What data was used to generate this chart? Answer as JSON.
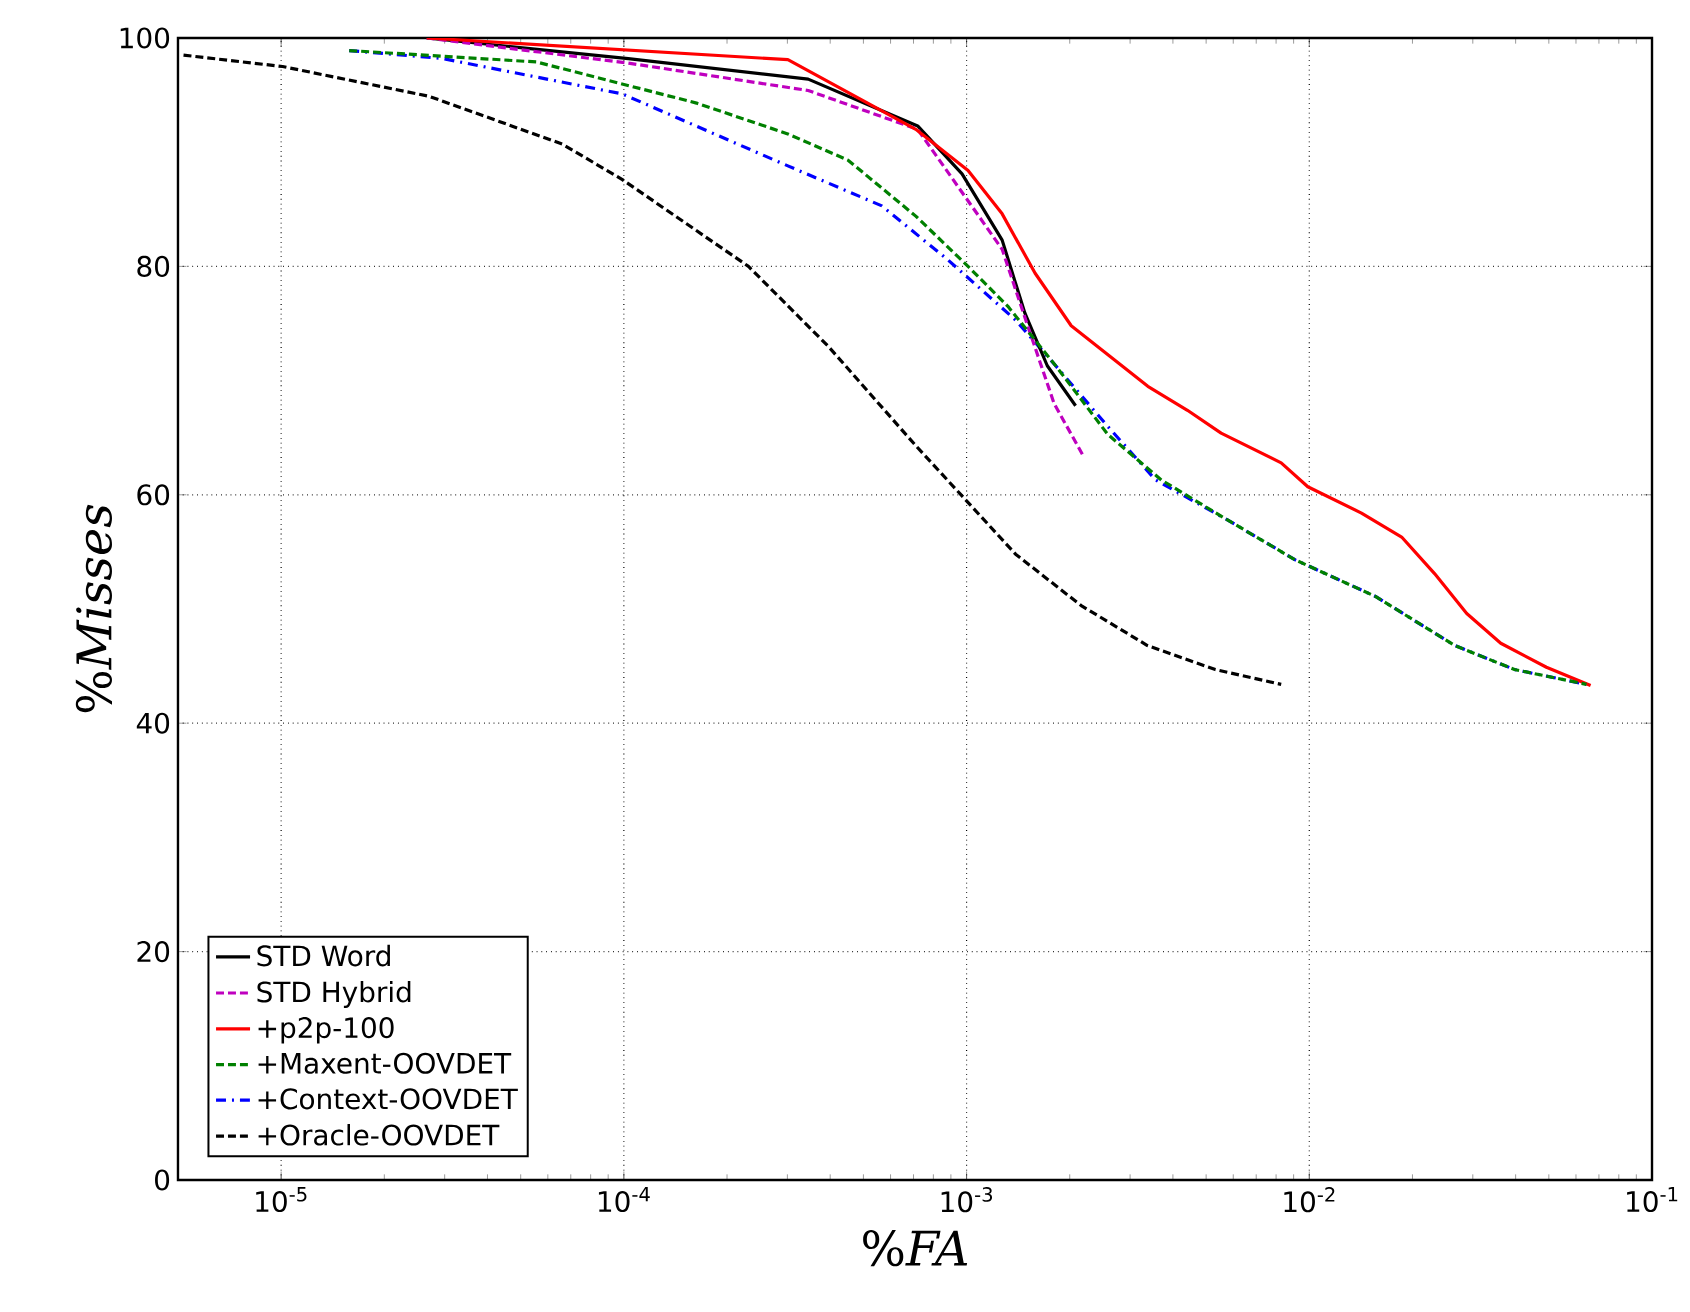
{
  "chart_data": {
    "type": "line",
    "xlabel": "%*FA*",
    "ylabel": "%*Misses*",
    "log": "x",
    "xlim": [
      5e-06,
      0.1
    ],
    "ylim": [
      0,
      100
    ],
    "xticks": [
      {
        "value": 1e-05,
        "label": "10$^{-5}$"
      },
      {
        "value": 0.0001,
        "label": "10$^{-4}$"
      },
      {
        "value": 0.001,
        "label": "10$^{-3}$"
      },
      {
        "value": 0.01,
        "label": "10$^{-2}$"
      },
      {
        "value": 0.1,
        "label": "10$^{-1}$"
      }
    ],
    "yticks": [
      0,
      20,
      40,
      60,
      80,
      100
    ],
    "grid": true,
    "legend": "bottom left",
    "marker": "none",
    "series": [
      {
        "name": "STD Word",
        "color": "#000000",
        "line_style": "solid",
        "x": [
          2.66e-05,
          0.000103,
          0.000345,
          0.00072,
          0.00097,
          0.00127,
          0.00148,
          0.00172,
          0.00208
        ],
        "values": [
          100,
          98.2,
          96.4,
          92.3,
          88.1,
          82.3,
          75.9,
          71.3,
          67.8
        ]
      },
      {
        "name": "STD Hybrid",
        "color": "#bf00bf",
        "line_style": "dashed",
        "x": [
          2.66e-05,
          0.000103,
          0.000345,
          0.00072,
          0.00127,
          0.0015,
          0.0018,
          0.0022
        ],
        "values": [
          100,
          97.8,
          95.4,
          92,
          81.5,
          75,
          68,
          63.3
        ]
      },
      {
        "name": "+p2p-100",
        "color": "#ff0000",
        "line_style": "solid",
        "x": [
          2.66e-05,
          0.000301,
          0.000711,
          0.00101,
          0.00127,
          0.001585,
          0.00202,
          0.00338,
          0.00441,
          0.00553,
          0.00828,
          0.0099,
          0.0142,
          0.0186,
          0.0232,
          0.0288,
          0.0362,
          0.0492,
          0.0662
        ],
        "values": [
          100,
          98.1,
          92,
          88.4,
          84.6,
          79.4,
          74.8,
          69.5,
          67.4,
          65.4,
          62.8,
          60.7,
          58.4,
          56.3,
          53.1,
          49.6,
          47,
          44.9,
          43.3
        ]
      },
      {
        "name": "+Maxent-OOVDET",
        "color": "#008000",
        "line_style": "dashed",
        "x": [
          1.58e-05,
          5.56e-05,
          0.000163,
          0.000301,
          0.000451,
          0.000711,
          0.00101,
          0.00132,
          0.00182,
          0.00258,
          0.0037,
          0.00577,
          0.0091,
          0.0156,
          0.0266,
          0.0397,
          0.0644
        ],
        "values": [
          98.9,
          97.9,
          94.3,
          91.6,
          89.3,
          84.4,
          80,
          76.5,
          71.3,
          65.3,
          61.3,
          57.8,
          54.3,
          51.1,
          46.8,
          44.7,
          43.4
        ]
      },
      {
        "name": "+Context-OOVDET",
        "color": "#0000ff",
        "line_style": "dashdot",
        "x": [
          1.58e-05,
          2.96e-05,
          9.9e-05,
          0.000301,
          0.000566,
          0.00088,
          0.00139,
          0.00182,
          0.00258,
          0.00356,
          0.00577,
          0.0091,
          0.0156,
          0.0266,
          0.0397,
          0.0644
        ],
        "values": [
          98.9,
          98.2,
          95.1,
          88.8,
          85.3,
          80.6,
          75.3,
          71.3,
          66,
          61.3,
          57.8,
          54.3,
          51.1,
          46.8,
          44.7,
          43.4
        ]
      },
      {
        "name": "+Oracle-OOVDET",
        "color": "#000000",
        "line_style": "dashed",
        "x": [
          5.19e-06,
          1.01e-05,
          2.7e-05,
          6.62e-05,
          9.9e-05,
          0.000231,
          0.000395,
          0.000711,
          0.00097,
          0.00139,
          0.00216,
          0.00337,
          0.00532,
          0.00828
        ],
        "values": [
          98.5,
          97.5,
          94.9,
          90.7,
          87.6,
          80,
          73,
          64.3,
          59.9,
          54.8,
          50.3,
          46.8,
          44.7,
          43.4
        ]
      }
    ]
  }
}
